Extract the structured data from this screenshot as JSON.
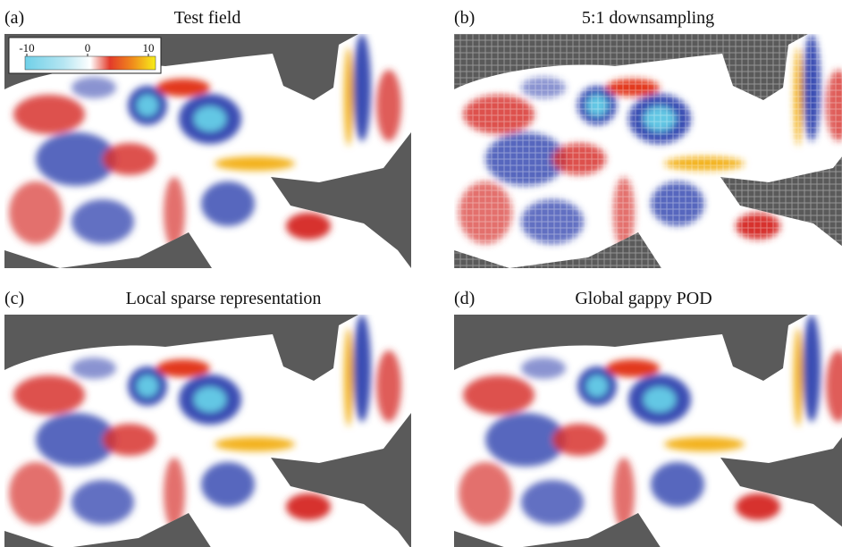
{
  "panels": [
    {
      "label": "(a)",
      "title": "Test field"
    },
    {
      "label": "(b)",
      "title": "5:1 downsampling"
    },
    {
      "label": "(c)",
      "title": "Local sparse representation"
    },
    {
      "label": "(d)",
      "title": "Global gappy POD"
    }
  ],
  "colorbar": {
    "ticks": [
      -10,
      0,
      10
    ]
  }
}
